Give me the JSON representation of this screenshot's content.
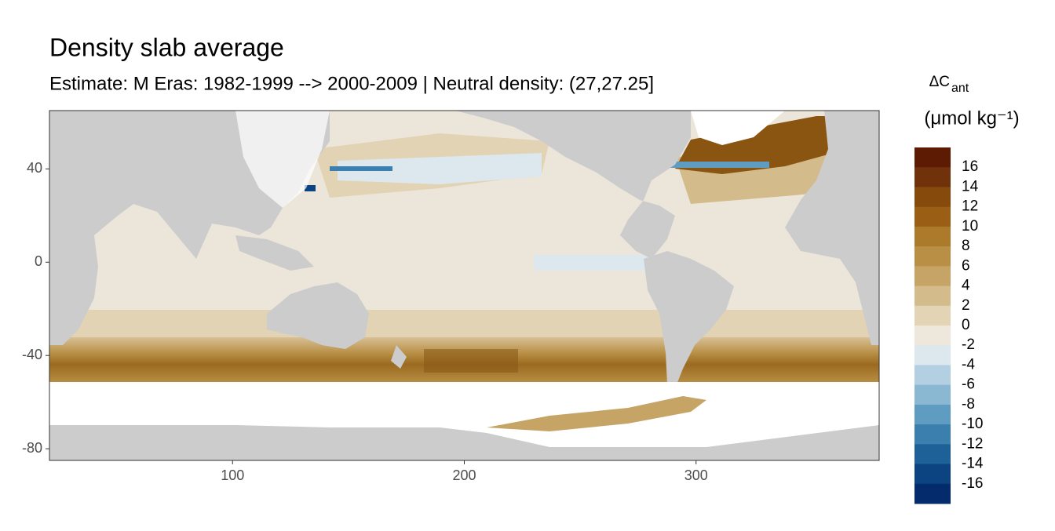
{
  "chart_data": {
    "type": "raster_map",
    "title": "Density slab average",
    "subtitle": "Estimate: M Eras: 1982-1999 --> 2000-2009 | Neutral density: (27,27.25]",
    "xlim": [
      21,
      379
    ],
    "xticks": [
      100,
      200,
      300
    ],
    "ylim": [
      -85,
      65
    ],
    "yticks": [
      40,
      0,
      -40,
      -80
    ],
    "grid": true,
    "legend": {
      "title": "ΔC",
      "title_subscript": "ant",
      "unit": "(μmol kg⁻¹)",
      "lim": [
        -18,
        18
      ],
      "ticks": [
        16,
        14,
        12,
        10,
        8,
        6,
        4,
        2,
        0,
        -2,
        -4,
        -6,
        -8,
        -10,
        -12,
        -14,
        -16
      ],
      "colors": [
        "#5e1b04",
        "#70320a",
        "#864a0c",
        "#9a5f14",
        "#ab7a2a",
        "#b88f45",
        "#c6a466",
        "#d4bb8c",
        "#e3d4b5",
        "#ede7dc",
        "#dce8ee",
        "#b3d0e3",
        "#8ab8d3",
        "#5e9dc1",
        "#3a7fae",
        "#1d6198",
        "#0b4481",
        "#042c6c"
      ]
    }
  }
}
